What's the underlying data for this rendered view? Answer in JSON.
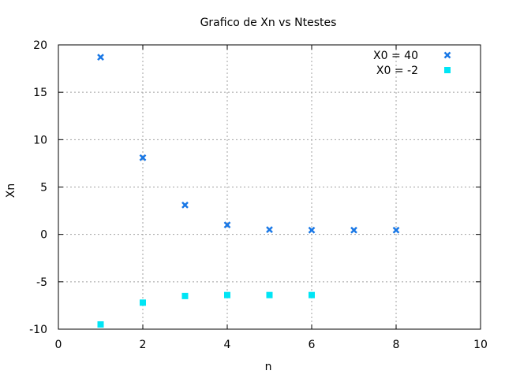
{
  "chart_data": {
    "type": "scatter",
    "title": "Grafico de Xn vs Ntestes",
    "xlabel": "n",
    "ylabel": "Xn",
    "xlim": [
      0,
      10
    ],
    "ylim": [
      -10,
      20
    ],
    "xticks": [
      "0",
      "2",
      "4",
      "6",
      "8",
      "10"
    ],
    "yticks": [
      "-10",
      "-5",
      "0",
      "5",
      "10",
      "15",
      "20"
    ],
    "grid": true,
    "legend_position": "top-right",
    "series": [
      {
        "name": "X0 = 40",
        "color": "#1a78e6",
        "marker": "filled-x",
        "x": [
          1,
          2,
          3,
          4,
          5,
          6,
          7,
          8
        ],
        "y": [
          18.7,
          8.1,
          3.1,
          1.0,
          0.5,
          0.45,
          0.45,
          0.45
        ]
      },
      {
        "name": "X0 = -2",
        "color": "#00e5f5",
        "marker": "filled-square",
        "x": [
          1,
          2,
          3,
          4,
          5,
          6
        ],
        "y": [
          -9.5,
          -7.2,
          -6.5,
          -6.4,
          -6.4,
          -6.4
        ]
      }
    ]
  }
}
